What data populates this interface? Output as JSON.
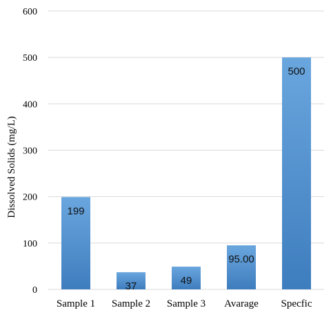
{
  "chart_data": {
    "type": "bar",
    "categories": [
      "Sample 1",
      "Sample 2",
      "Sample 3",
      "Avarage",
      "Specfic"
    ],
    "values": [
      199,
      37,
      49,
      95,
      500
    ],
    "data_labels": [
      "199",
      "37",
      "49",
      "95.00",
      "500"
    ],
    "ylabel": "Dissolved Solids (mg/L)",
    "xlabel": "",
    "ylim": [
      0,
      600
    ],
    "yticks": [
      0,
      100,
      200,
      300,
      400,
      500,
      600
    ],
    "grid": true,
    "legend": "none",
    "bar_color_top": "#6aa6de",
    "bar_color_bottom": "#3e7dbe"
  }
}
